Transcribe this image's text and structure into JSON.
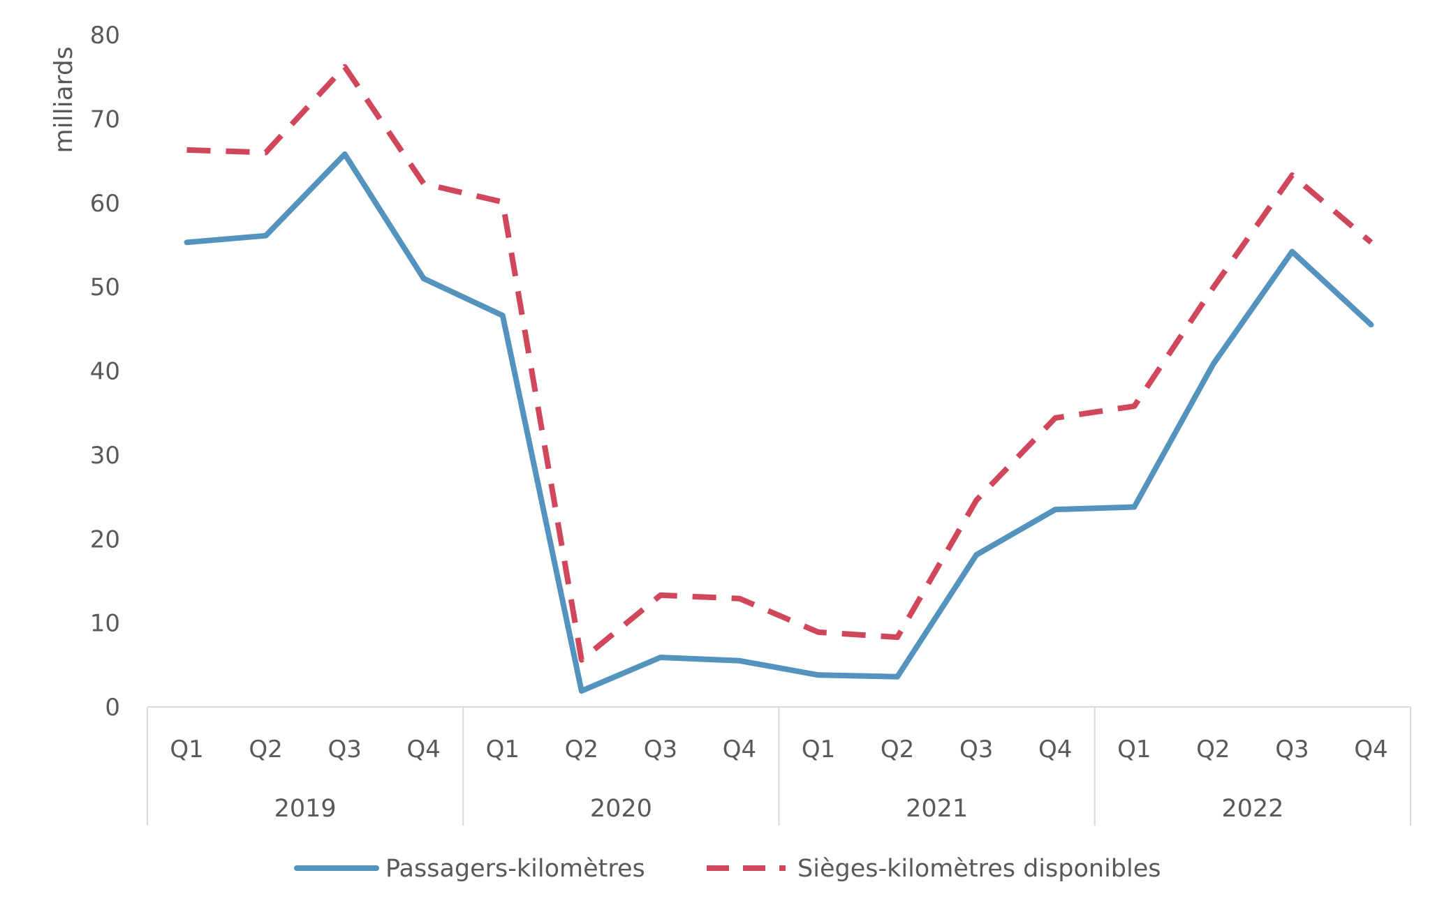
{
  "chart_data": {
    "type": "line",
    "title": "",
    "ylabel": "milliards",
    "xlabel": "",
    "ylim": [
      0,
      80
    ],
    "yticks": [
      0,
      10,
      20,
      30,
      40,
      50,
      60,
      70,
      80
    ],
    "grid": false,
    "legend_position": "bottom",
    "categories": [
      "Q1",
      "Q2",
      "Q3",
      "Q4",
      "Q1",
      "Q2",
      "Q3",
      "Q4",
      "Q1",
      "Q2",
      "Q3",
      "Q4",
      "Q1",
      "Q2",
      "Q3",
      "Q4"
    ],
    "groups": [
      {
        "label": "2019",
        "count": 4
      },
      {
        "label": "2020",
        "count": 4
      },
      {
        "label": "2021",
        "count": 4
      },
      {
        "label": "2022",
        "count": 4
      }
    ],
    "series": [
      {
        "name": "Passagers-kilomètres",
        "color": "#5393BE",
        "style": "solid",
        "values": [
          55.3,
          56.1,
          65.8,
          51.0,
          46.6,
          1.9,
          5.9,
          5.5,
          3.8,
          3.6,
          18.1,
          23.5,
          23.8,
          40.8,
          54.2,
          45.5
        ]
      },
      {
        "name": "Sièges-kilomètres disponibles",
        "color": "#D0465B",
        "style": "dashed",
        "values": [
          66.3,
          66.0,
          76.2,
          62.3,
          60.1,
          5.6,
          13.3,
          12.9,
          8.9,
          8.3,
          24.6,
          34.4,
          35.8,
          49.9,
          63.3,
          55.3
        ]
      }
    ]
  }
}
